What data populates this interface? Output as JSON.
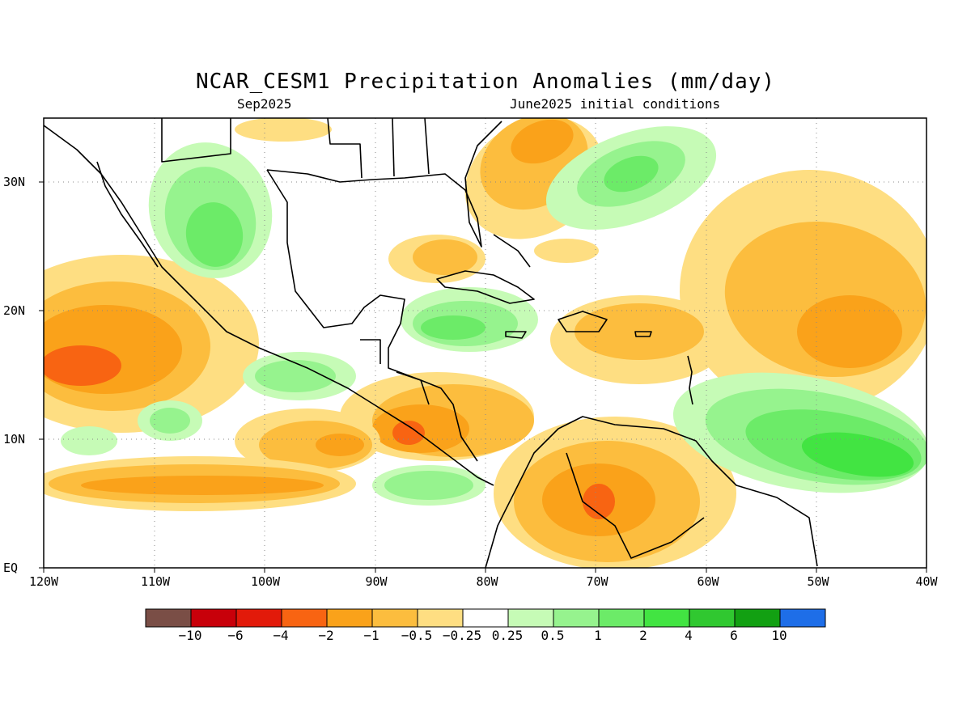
{
  "title": "NCAR_CESM1 Precipitation Anomalies (mm/day)",
  "valid_month": "Sep2025",
  "init_conditions": "June2025 initial conditions",
  "lat_labels": [
    "30N",
    "20N",
    "10N",
    "EQ"
  ],
  "lon_labels": [
    "120W",
    "110W",
    "100W",
    "90W",
    "80W",
    "70W",
    "60W",
    "50W",
    "40W"
  ],
  "colorbar": {
    "colors": [
      "#7a4e46",
      "#c8000a",
      "#e21a0a",
      "#f86412",
      "#faa21a",
      "#fcbd3e",
      "#fede82",
      "#ffffff",
      "#c6fbb6",
      "#96f38e",
      "#6ceb68",
      "#42e442",
      "#30c830",
      "#12a012",
      "#1e6ee8"
    ],
    "labels": [
      "−10",
      "−6",
      "−4",
      "−2",
      "−1",
      "−0.5",
      "−0.25",
      "0.25",
      "0.5",
      "1",
      "2",
      "4",
      "6",
      "10"
    ]
  },
  "map_colors": {
    "dry_light": "#fede82",
    "dry_mid": "#fcbd3e",
    "dry_strong": "#faa21a",
    "dry_heavy": "#f86412",
    "wet_light": "#c6fbb6",
    "wet_mid": "#96f38e",
    "wet_strong": "#6ceb68",
    "wet_heavy": "#42e442",
    "coast": "#000000",
    "grid": "#888888"
  }
}
